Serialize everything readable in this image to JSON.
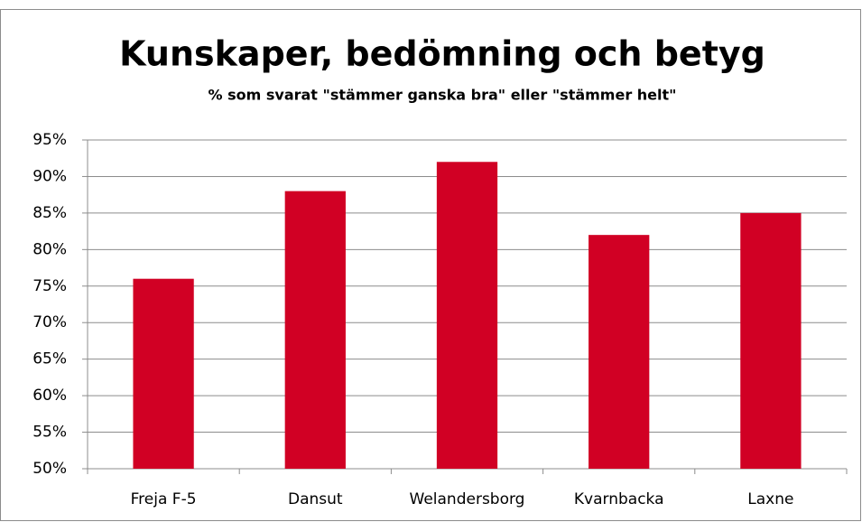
{
  "chart_data": {
    "type": "bar",
    "title": "Kunskaper, bedömning och betyg",
    "subtitle": "% som svarat \"stämmer ganska bra\" eller \"stämmer helt\"",
    "categories": [
      "Freja F-5",
      "Dansut",
      "Welandersborg",
      "Kvarnbacka",
      "Laxne"
    ],
    "values": [
      76,
      88,
      92,
      82,
      85
    ],
    "color": "#d10024",
    "ylim": [
      50,
      95
    ],
    "yticks": [
      {
        "value": 50,
        "label": "50%"
      },
      {
        "value": 55,
        "label": "55%"
      },
      {
        "value": 60,
        "label": "60%"
      },
      {
        "value": 65,
        "label": "65%"
      },
      {
        "value": 70,
        "label": "70%"
      },
      {
        "value": 75,
        "label": "75%"
      },
      {
        "value": 80,
        "label": "80%"
      },
      {
        "value": 85,
        "label": "85%"
      },
      {
        "value": 90,
        "label": "90%"
      },
      {
        "value": 95,
        "label": "95%"
      }
    ],
    "grid": true
  }
}
